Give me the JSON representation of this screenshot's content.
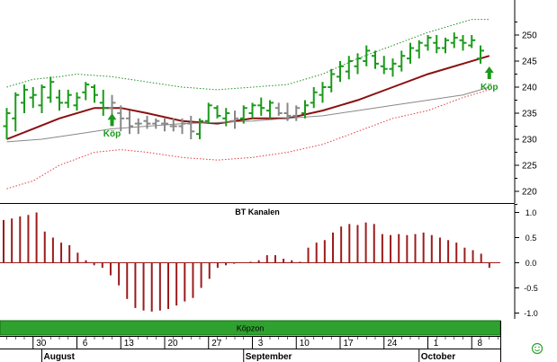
{
  "chart_data": [
    {
      "type": "ohlc-bar",
      "title": "",
      "ylim": [
        215,
        255
      ],
      "yticks": [
        220,
        225,
        230,
        235,
        240,
        245,
        250
      ],
      "grid": false,
      "colors": {
        "up_bar": "#1b9a1b",
        "down_bar": "#888888",
        "moving_average": "#8b1010",
        "long_average": "#888888",
        "upper_band": "#1f8f1f",
        "lower_band": "#e03a3a",
        "arrow": "#1b9a1b"
      },
      "series": [
        {
          "kind": "bars",
          "values": [
            {
              "o": 232.5,
              "h": 236,
              "l": 230,
              "c": 235,
              "up": true
            },
            {
              "o": 234,
              "h": 239,
              "l": 231.5,
              "c": 238.5,
              "up": true
            },
            {
              "o": 237,
              "h": 240.5,
              "l": 235,
              "c": 239.5,
              "up": true
            },
            {
              "o": 238,
              "h": 240,
              "l": 236,
              "c": 238.5,
              "up": true
            },
            {
              "o": 236.5,
              "h": 240.5,
              "l": 235,
              "c": 240,
              "up": true
            },
            {
              "o": 238,
              "h": 242,
              "l": 237,
              "c": 241,
              "up": true
            },
            {
              "o": 238,
              "h": 239.5,
              "l": 235.5,
              "c": 237,
              "up": true
            },
            {
              "o": 237,
              "h": 239.5,
              "l": 236,
              "c": 238.5,
              "up": true
            },
            {
              "o": 236.5,
              "h": 239,
              "l": 235.5,
              "c": 238,
              "up": true
            },
            {
              "o": 239,
              "h": 241,
              "l": 237.5,
              "c": 240.5,
              "up": true
            },
            {
              "o": 240,
              "h": 240.5,
              "l": 237,
              "c": 238.5,
              "up": true
            },
            {
              "o": 237,
              "h": 239.5,
              "l": 234.5,
              "c": 236,
              "up": true
            },
            {
              "o": 236,
              "h": 238.5,
              "l": 232.5,
              "c": 237,
              "up": false
            },
            {
              "o": 235,
              "h": 236.5,
              "l": 231.5,
              "c": 234,
              "up": false
            },
            {
              "o": 234,
              "h": 235.5,
              "l": 231,
              "c": 232.5,
              "up": false
            },
            {
              "o": 233,
              "h": 234,
              "l": 231,
              "c": 233,
              "up": false
            },
            {
              "o": 233.5,
              "h": 234.5,
              "l": 232,
              "c": 233,
              "up": false
            },
            {
              "o": 233,
              "h": 234,
              "l": 232,
              "c": 233.5,
              "up": false
            },
            {
              "o": 233,
              "h": 234,
              "l": 231.5,
              "c": 233,
              "up": false
            },
            {
              "o": 232.5,
              "h": 234,
              "l": 231.5,
              "c": 232.5,
              "up": false
            },
            {
              "o": 232.5,
              "h": 234,
              "l": 231,
              "c": 233,
              "up": false
            },
            {
              "o": 233,
              "h": 234.5,
              "l": 230,
              "c": 231.5,
              "up": false
            },
            {
              "o": 231,
              "h": 234,
              "l": 230,
              "c": 233.5,
              "up": true
            },
            {
              "o": 233.5,
              "h": 237,
              "l": 233,
              "c": 236.5,
              "up": true
            },
            {
              "o": 236,
              "h": 236.5,
              "l": 234,
              "c": 234.5,
              "up": true
            },
            {
              "o": 234,
              "h": 236,
              "l": 232.5,
              "c": 235,
              "up": true
            },
            {
              "o": 233.5,
              "h": 235.5,
              "l": 232,
              "c": 234,
              "up": false
            },
            {
              "o": 234,
              "h": 236.5,
              "l": 233,
              "c": 236,
              "up": true
            },
            {
              "o": 235,
              "h": 237,
              "l": 234,
              "c": 236.5,
              "up": true
            },
            {
              "o": 236.5,
              "h": 238,
              "l": 234.5,
              "c": 236,
              "up": true
            },
            {
              "o": 235.5,
              "h": 237.5,
              "l": 234,
              "c": 237,
              "up": true
            },
            {
              "o": 236,
              "h": 237,
              "l": 234.5,
              "c": 235,
              "up": false
            },
            {
              "o": 235,
              "h": 237,
              "l": 233.5,
              "c": 234.5,
              "up": false
            },
            {
              "o": 234.5,
              "h": 236.5,
              "l": 233.5,
              "c": 236,
              "up": false
            },
            {
              "o": 235,
              "h": 237.5,
              "l": 234,
              "c": 236.5,
              "up": true
            },
            {
              "o": 237,
              "h": 240,
              "l": 236,
              "c": 239,
              "up": true
            },
            {
              "o": 238.5,
              "h": 241,
              "l": 237,
              "c": 240,
              "up": true
            },
            {
              "o": 240,
              "h": 243.5,
              "l": 239,
              "c": 242.5,
              "up": true
            },
            {
              "o": 242,
              "h": 245,
              "l": 241,
              "c": 244,
              "up": true
            },
            {
              "o": 243,
              "h": 246,
              "l": 241.5,
              "c": 245,
              "up": true
            },
            {
              "o": 244,
              "h": 246.5,
              "l": 242.5,
              "c": 245.5,
              "up": true
            },
            {
              "o": 245,
              "h": 248,
              "l": 244,
              "c": 247,
              "up": true
            },
            {
              "o": 246,
              "h": 247,
              "l": 243.5,
              "c": 244.5,
              "up": true
            },
            {
              "o": 244,
              "h": 246,
              "l": 242.5,
              "c": 243.5,
              "up": true
            },
            {
              "o": 243.5,
              "h": 245.5,
              "l": 242,
              "c": 244.5,
              "up": true
            },
            {
              "o": 244,
              "h": 247,
              "l": 243,
              "c": 246,
              "up": true
            },
            {
              "o": 245.5,
              "h": 248.5,
              "l": 244.5,
              "c": 247.5,
              "up": true
            },
            {
              "o": 247,
              "h": 249,
              "l": 245.5,
              "c": 248.5,
              "up": true
            },
            {
              "o": 248,
              "h": 250,
              "l": 247,
              "c": 249.5,
              "up": true
            },
            {
              "o": 248.5,
              "h": 250,
              "l": 246.5,
              "c": 247.5,
              "up": true
            },
            {
              "o": 247.5,
              "h": 249.5,
              "l": 246.5,
              "c": 249,
              "up": true
            },
            {
              "o": 248.5,
              "h": 250.5,
              "l": 247.5,
              "c": 249.5,
              "up": true
            },
            {
              "o": 249,
              "h": 250,
              "l": 247,
              "c": 248.5,
              "up": true
            },
            {
              "o": 248,
              "h": 250,
              "l": 247.5,
              "c": 249,
              "up": true
            },
            {
              "o": 245.5,
              "h": 248,
              "l": 244.5,
              "c": 247,
              "up": true
            }
          ]
        },
        {
          "kind": "line",
          "role": "moving_average",
          "style": "solid",
          "points": [
            [
              0,
              230
            ],
            [
              3,
              232
            ],
            [
              6,
              234
            ],
            [
              10,
              236
            ],
            [
              13,
              236
            ],
            [
              16,
              235
            ],
            [
              20,
              233.5
            ],
            [
              24,
              233
            ],
            [
              28,
              234
            ],
            [
              32,
              234
            ],
            [
              36,
              235.5
            ],
            [
              40,
              237.5
            ],
            [
              44,
              240
            ],
            [
              48,
              242.5
            ],
            [
              52,
              244.5
            ],
            [
              55,
              246
            ]
          ]
        },
        {
          "kind": "line",
          "role": "long_average",
          "style": "solid",
          "points": [
            [
              0,
              229.5
            ],
            [
              4,
              230
            ],
            [
              8,
              231
            ],
            [
              12,
              232
            ],
            [
              16,
              232.5
            ],
            [
              20,
              233
            ],
            [
              24,
              233.2
            ],
            [
              28,
              233.5
            ],
            [
              32,
              234
            ],
            [
              36,
              234.5
            ],
            [
              40,
              235.5
            ],
            [
              44,
              236.5
            ],
            [
              48,
              237.5
            ],
            [
              52,
              238.5
            ],
            [
              55,
              240
            ]
          ]
        },
        {
          "kind": "line",
          "role": "upper_band",
          "style": "dotted",
          "points": [
            [
              0,
              240
            ],
            [
              3,
              241.5
            ],
            [
              6,
              242
            ],
            [
              8,
              242.5
            ],
            [
              12,
              242
            ],
            [
              16,
              241
            ],
            [
              20,
              240
            ],
            [
              24,
              239.5
            ],
            [
              28,
              240
            ],
            [
              32,
              240.5
            ],
            [
              36,
              242.5
            ],
            [
              40,
              245.5
            ],
            [
              44,
              248
            ],
            [
              48,
              250.5
            ],
            [
              51,
              252
            ],
            [
              53,
              253
            ],
            [
              55,
              253
            ]
          ]
        },
        {
          "kind": "line",
          "role": "lower_band",
          "style": "dotted",
          "points": [
            [
              0,
              220.5
            ],
            [
              3,
              222
            ],
            [
              6,
              225
            ],
            [
              10,
              227.5
            ],
            [
              13,
              228
            ],
            [
              16,
              227.5
            ],
            [
              20,
              226.5
            ],
            [
              24,
              226
            ],
            [
              28,
              226.5
            ],
            [
              32,
              227.5
            ],
            [
              36,
              229
            ],
            [
              40,
              231.5
            ],
            [
              44,
              234
            ],
            [
              48,
              235.5
            ],
            [
              52,
              238
            ],
            [
              55,
              239.5
            ]
          ]
        }
      ],
      "annotations": [
        {
          "text": "Köp",
          "x": 12,
          "y": 236,
          "placement": "below"
        },
        {
          "text": "Köp",
          "x": 55,
          "y": 245,
          "placement": "below"
        }
      ]
    },
    {
      "type": "bar",
      "title": "BT Kanalen",
      "ylim": [
        -1.1,
        1.1
      ],
      "yticks": [
        "1.0",
        "0.5",
        "0.0",
        "-0.5",
        "-1.0"
      ],
      "grid": false,
      "colors": {
        "bar": "#9b1c1c"
      },
      "values": [
        0.85,
        0.88,
        0.92,
        0.95,
        1.0,
        0.62,
        0.5,
        0.4,
        0.35,
        0.2,
        0.05,
        -0.05,
        -0.1,
        -0.25,
        -0.45,
        -0.72,
        -0.9,
        -0.95,
        -0.97,
        -0.95,
        -0.92,
        -0.85,
        -0.77,
        -0.7,
        -0.5,
        -0.32,
        -0.1,
        -0.05,
        -0.02,
        0.0,
        0.02,
        0.05,
        0.15,
        0.15,
        0.08,
        0.05,
        0.02,
        0.3,
        0.4,
        0.45,
        0.6,
        0.72,
        0.77,
        0.75,
        0.8,
        0.77,
        0.57,
        0.55,
        0.57,
        0.55,
        0.57,
        0.6,
        0.55,
        0.5,
        0.45,
        0.4,
        0.3,
        0.25,
        0.18,
        -0.1
      ]
    }
  ],
  "zone_label": "Köpzon",
  "x_axis": {
    "days": [
      {
        "label": "30",
        "x": 3
      },
      {
        "label": "6",
        "x": 8
      },
      {
        "label": "13",
        "x": 13
      },
      {
        "label": "20",
        "x": 18
      },
      {
        "label": "27",
        "x": 23
      },
      {
        "label": "3",
        "x": 28
      },
      {
        "label": "10",
        "x": 33
      },
      {
        "label": "17",
        "x": 38
      },
      {
        "label": "24",
        "x": 43
      },
      {
        "label": "1",
        "x": 48
      },
      {
        "label": "8",
        "x": 53
      }
    ],
    "months": [
      {
        "label": "August",
        "x": 4
      },
      {
        "label": "September",
        "x": 27
      },
      {
        "label": "October",
        "x": 47
      }
    ]
  },
  "footer_icon": "smiley-icon"
}
